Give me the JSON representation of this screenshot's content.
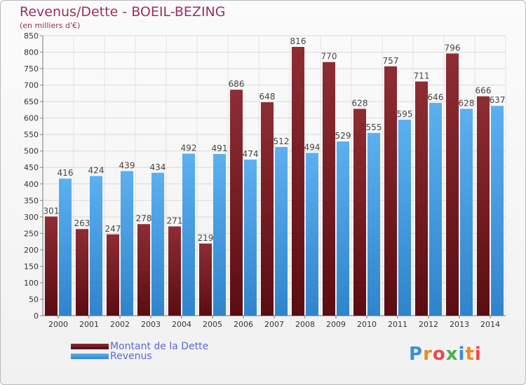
{
  "header": {
    "title": "Revenus/Dette - BOEIL-BEZING",
    "subtitle": "(en milliers d'€)"
  },
  "colors": {
    "dette": "#7a1f25",
    "revenus": "#4aa3e8",
    "title": "#9a2f5f",
    "legend_text": "#5a66d8"
  },
  "legend": [
    {
      "label": "Montant de la Dette",
      "color": "#7a1f25"
    },
    {
      "label": "Revenus",
      "color": "#4aa3e8"
    }
  ],
  "logo": {
    "text": "Proxiti"
  },
  "chart_data": {
    "type": "bar",
    "title": "Revenus/Dette - BOEIL-BEZING",
    "subtitle": "(en milliers d'€)",
    "xlabel": "",
    "ylabel": "",
    "ylim": [
      0,
      850
    ],
    "ytick_step": 50,
    "grid": true,
    "legend_position": "bottom-left",
    "categories": [
      "2000",
      "2001",
      "2002",
      "2003",
      "2004",
      "2005",
      "2006",
      "2007",
      "2008",
      "2009",
      "2010",
      "2011",
      "2012",
      "2013",
      "2014"
    ],
    "series": [
      {
        "name": "Montant de la Dette",
        "color": "#7a1f25",
        "values": [
          301,
          263,
          247,
          278,
          271,
          219,
          686,
          648,
          816,
          770,
          628,
          757,
          711,
          796,
          666
        ]
      },
      {
        "name": "Revenus",
        "color": "#4aa3e8",
        "values": [
          416,
          424,
          439,
          434,
          492,
          491,
          474,
          512,
          494,
          529,
          555,
          595,
          646,
          628,
          637
        ]
      }
    ]
  }
}
